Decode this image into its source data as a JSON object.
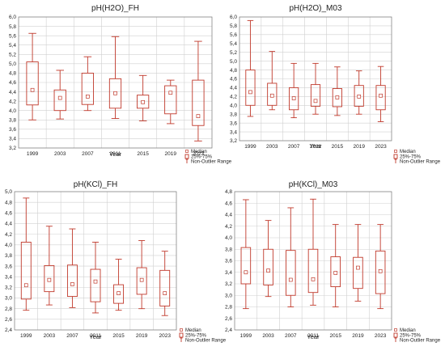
{
  "chart_data": [
    {
      "type": "box",
      "title": "pH(H2O)_FH",
      "xlabel": "Year",
      "categories": [
        "1999",
        "2003",
        "2007",
        "2011",
        "2015",
        "2019",
        "2023"
      ],
      "ylim": [
        3.2,
        6.0
      ],
      "yticks": [
        "3,2",
        "3,4",
        "3,6",
        "3,8",
        "4,0",
        "4,2",
        "4,4",
        "4,6",
        "4,8",
        "5,0",
        "5,2",
        "5,4",
        "5,6",
        "5,8",
        "6,0"
      ],
      "boxes": [
        {
          "min": 3.8,
          "q1": 4.12,
          "median": 4.44,
          "q3": 5.04,
          "max": 5.65
        },
        {
          "min": 3.82,
          "q1": 4.0,
          "median": 4.27,
          "q3": 4.44,
          "max": 4.86
        },
        {
          "min": 4.0,
          "q1": 4.13,
          "median": 4.3,
          "q3": 4.8,
          "max": 5.15
        },
        {
          "min": 3.83,
          "q1": 4.05,
          "median": 4.37,
          "q3": 4.68,
          "max": 5.58
        },
        {
          "min": 3.78,
          "q1": 4.05,
          "median": 4.18,
          "q3": 4.33,
          "max": 4.75
        },
        {
          "min": 3.72,
          "q1": 3.93,
          "median": 4.38,
          "q3": 4.53,
          "max": 4.65
        },
        {
          "min": 3.35,
          "q1": 3.68,
          "median": 3.88,
          "q3": 4.65,
          "max": 5.48
        }
      ],
      "legend": [
        "Median",
        "25%-75%",
        "Non-Outlier Range"
      ]
    },
    {
      "type": "box",
      "title": "pH(H2O)_M03",
      "xlabel": "Year",
      "categories": [
        "1999",
        "2003",
        "2007",
        "2011",
        "2015",
        "2019",
        "2023"
      ],
      "ylim": [
        3.2,
        6.0
      ],
      "yticks": [
        "3,2",
        "3,4",
        "3,6",
        "3,8",
        "4,0",
        "4,2",
        "4,4",
        "4,6",
        "4,8",
        "5,0",
        "5,2",
        "5,4",
        "5,6",
        "5,8",
        "6,0"
      ],
      "boxes": [
        {
          "min": 3.75,
          "q1": 4.0,
          "median": 4.3,
          "q3": 4.8,
          "max": 5.92
        },
        {
          "min": 3.9,
          "q1": 4.0,
          "median": 4.22,
          "q3": 4.5,
          "max": 5.22
        },
        {
          "min": 3.72,
          "q1": 3.9,
          "median": 4.16,
          "q3": 4.4,
          "max": 4.95
        },
        {
          "min": 3.8,
          "q1": 3.98,
          "median": 4.1,
          "q3": 4.47,
          "max": 4.95
        },
        {
          "min": 3.77,
          "q1": 3.97,
          "median": 4.18,
          "q3": 4.38,
          "max": 4.87
        },
        {
          "min": 3.8,
          "q1": 3.98,
          "median": 4.2,
          "q3": 4.45,
          "max": 4.78
        },
        {
          "min": 3.63,
          "q1": 3.9,
          "median": 4.22,
          "q3": 4.45,
          "max": 4.88
        }
      ],
      "legend": [
        "Median",
        "25%-75%",
        "Non-Outlier Range"
      ]
    },
    {
      "type": "box",
      "title": "pH(KCl)_FH",
      "xlabel": "Year",
      "categories": [
        "1999",
        "2003",
        "2007",
        "2011",
        "2015",
        "2019",
        "2023"
      ],
      "ylim": [
        2.4,
        5.0
      ],
      "yticks": [
        "2,4",
        "2,6",
        "2,8",
        "3,0",
        "3,2",
        "3,4",
        "3,6",
        "3,8",
        "4,0",
        "4,2",
        "4,4",
        "4,6",
        "4,8",
        "5,0"
      ],
      "boxes": [
        {
          "min": 2.77,
          "q1": 2.98,
          "median": 3.24,
          "q3": 4.05,
          "max": 4.88
        },
        {
          "min": 2.87,
          "q1": 3.12,
          "median": 3.34,
          "q3": 3.61,
          "max": 4.35
        },
        {
          "min": 2.82,
          "q1": 3.03,
          "median": 3.26,
          "q3": 3.62,
          "max": 4.3
        },
        {
          "min": 2.72,
          "q1": 2.93,
          "median": 3.31,
          "q3": 3.54,
          "max": 4.05
        },
        {
          "min": 2.77,
          "q1": 2.9,
          "median": 3.09,
          "q3": 3.25,
          "max": 3.73
        },
        {
          "min": 2.8,
          "q1": 3.07,
          "median": 3.34,
          "q3": 3.57,
          "max": 4.08
        },
        {
          "min": 2.67,
          "q1": 2.85,
          "median": 3.09,
          "q3": 3.52,
          "max": 3.88
        }
      ],
      "legend": [
        "Median",
        "25%-75%",
        "Non-Outlier Range"
      ]
    },
    {
      "type": "box",
      "title": "pH(KCl)_M03",
      "xlabel": "Year",
      "categories": [
        "1999",
        "2003",
        "2007",
        "2011",
        "2015",
        "2019",
        "2023"
      ],
      "ylim": [
        2.4,
        4.8
      ],
      "yticks": [
        "2,4",
        "2,6",
        "2,8",
        "3,0",
        "3,2",
        "3,4",
        "3,6",
        "3,8",
        "4,0",
        "4,2",
        "4,4",
        "4,6",
        "4,8"
      ],
      "boxes": [
        {
          "min": 2.77,
          "q1": 3.2,
          "median": 3.4,
          "q3": 3.83,
          "max": 4.66
        },
        {
          "min": 2.98,
          "q1": 3.18,
          "median": 3.43,
          "q3": 3.8,
          "max": 4.3
        },
        {
          "min": 2.8,
          "q1": 3.0,
          "median": 3.27,
          "q3": 3.78,
          "max": 4.52
        },
        {
          "min": 2.83,
          "q1": 3.05,
          "median": 3.28,
          "q3": 3.8,
          "max": 4.67
        },
        {
          "min": 2.8,
          "q1": 3.15,
          "median": 3.39,
          "q3": 3.67,
          "max": 4.23
        },
        {
          "min": 2.9,
          "q1": 3.12,
          "median": 3.48,
          "q3": 3.66,
          "max": 4.23
        },
        {
          "min": 2.77,
          "q1": 3.03,
          "median": 3.42,
          "q3": 3.77,
          "max": 4.23
        }
      ],
      "legend": [
        "Median",
        "25%-75%",
        "Non-Outlier Range"
      ]
    }
  ]
}
